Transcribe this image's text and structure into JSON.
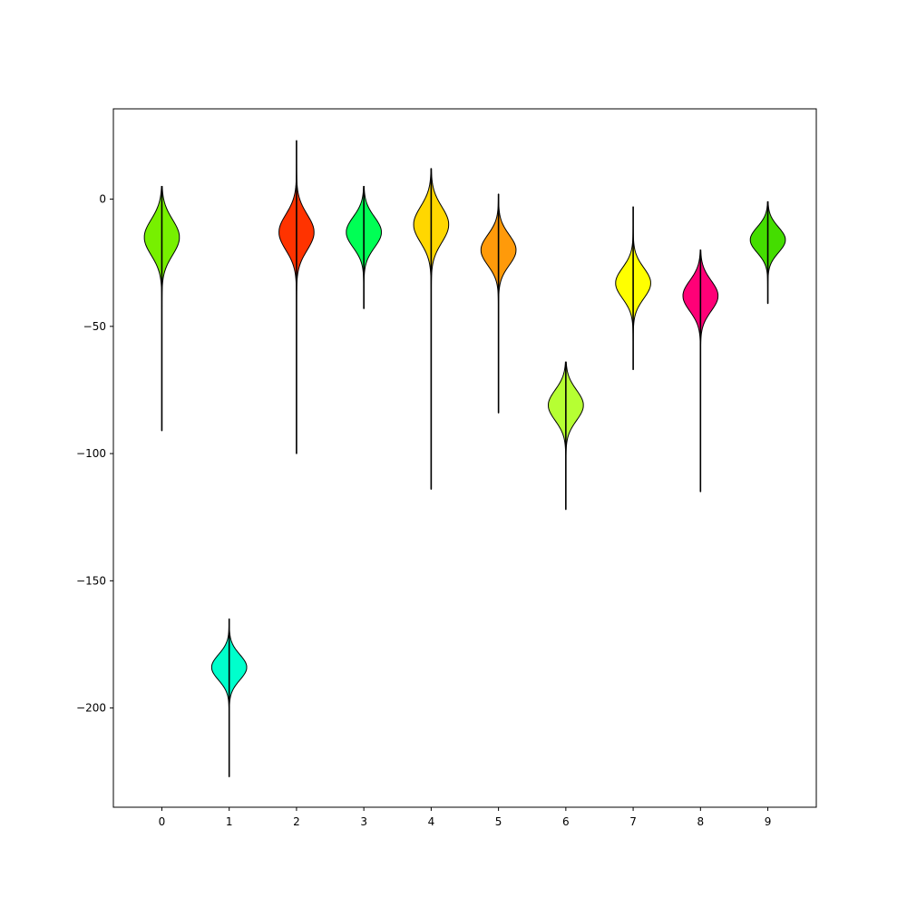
{
  "chart_data": {
    "type": "violin",
    "title": "",
    "xlabel": "",
    "ylabel": "",
    "x_ticks": [
      "0",
      "1",
      "2",
      "3",
      "4",
      "5",
      "6",
      "7",
      "8",
      "9"
    ],
    "y_ticks": [
      0,
      -50,
      -100,
      -150,
      -200
    ],
    "xlim": [
      -0.72,
      9.72
    ],
    "ylim": [
      -239,
      35.5
    ],
    "grid": false,
    "violins": [
      {
        "x": 0,
        "min": -91,
        "max": 5,
        "center": -15,
        "width": 0.26,
        "spread": 7,
        "color": "#77f000"
      },
      {
        "x": 1,
        "min": -227,
        "max": -165,
        "center": -184,
        "width": 0.26,
        "spread": 5,
        "color": "#00ffcc"
      },
      {
        "x": 2,
        "min": -100,
        "max": 23,
        "center": -13,
        "width": 0.26,
        "spread": 7,
        "color": "#ff3300"
      },
      {
        "x": 3,
        "min": -43,
        "max": 5,
        "center": -13,
        "width": 0.26,
        "spread": 6,
        "color": "#00ff55"
      },
      {
        "x": 4,
        "min": -114,
        "max": 12,
        "center": -10,
        "width": 0.26,
        "spread": 7,
        "color": "#ffd700"
      },
      {
        "x": 5,
        "min": -84,
        "max": 2,
        "center": -20,
        "width": 0.26,
        "spread": 6,
        "color": "#ff9a0a"
      },
      {
        "x": 6,
        "min": -122,
        "max": -64,
        "center": -81,
        "width": 0.26,
        "spread": 6,
        "color": "#b6ff33"
      },
      {
        "x": 7,
        "min": -67,
        "max": -3,
        "center": -33,
        "width": 0.26,
        "spread": 6,
        "color": "#ffff00"
      },
      {
        "x": 8,
        "min": -115,
        "max": -20,
        "center": -38,
        "width": 0.26,
        "spread": 6,
        "color": "#ff0077"
      },
      {
        "x": 9,
        "min": -41,
        "max": -1,
        "center": -16,
        "width": 0.26,
        "spread": 5,
        "color": "#44dd00"
      }
    ]
  }
}
